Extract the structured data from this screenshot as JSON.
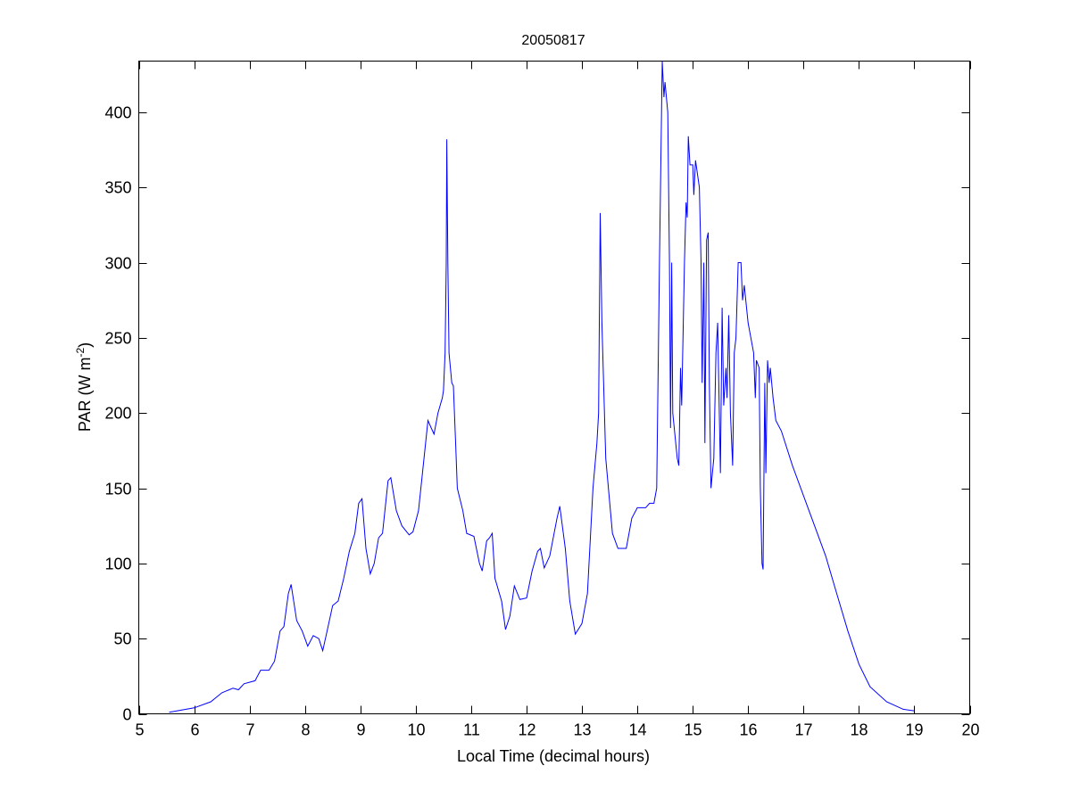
{
  "chart_data": {
    "type": "line",
    "title": "20050817",
    "xlabel": "Local Time (decimal hours)",
    "ylabel": "PAR (W m",
    "ylabel_sup": "-2",
    "ylabel_close": ")",
    "xlim": [
      5,
      20
    ],
    "ylim": [
      0,
      434
    ],
    "xticks": [
      5,
      6,
      7,
      8,
      9,
      10,
      11,
      12,
      13,
      14,
      15,
      16,
      17,
      18,
      19,
      20
    ],
    "yticks": [
      0,
      50,
      100,
      150,
      200,
      250,
      300,
      350,
      400
    ],
    "grid": false,
    "line_color": "#0000ff",
    "series": [
      {
        "x": [
          5.55,
          6.0,
          6.3,
          6.5,
          6.7,
          6.8,
          6.9,
          7.1,
          7.2,
          7.35,
          7.45,
          7.55,
          7.62,
          7.7,
          7.75,
          7.85,
          7.95,
          8.05,
          8.15,
          8.25,
          8.32,
          8.4,
          8.5,
          8.6,
          8.7,
          8.8,
          8.9,
          8.97,
          9.03,
          9.1,
          9.18,
          9.25,
          9.33,
          9.4,
          9.5,
          9.55,
          9.65,
          9.75,
          9.88,
          9.95,
          10.05,
          10.15,
          10.22,
          10.28,
          10.33,
          10.4,
          10.48,
          10.5,
          10.53,
          10.55,
          10.56,
          10.58,
          10.6,
          10.65,
          10.68,
          10.72,
          10.75,
          10.85,
          10.92,
          11.05,
          11.15,
          11.2,
          11.28,
          11.33,
          11.38,
          11.43,
          11.55,
          11.62,
          11.7,
          11.78,
          11.88,
          12.0,
          12.1,
          12.2,
          12.25,
          12.32,
          12.42,
          12.55,
          12.6,
          12.7,
          12.78,
          12.88,
          13.0,
          13.1,
          13.2,
          13.27,
          13.3,
          13.33,
          13.36,
          13.43,
          13.55,
          13.65,
          13.8,
          13.9,
          14.0,
          14.15,
          14.22,
          14.3,
          14.35,
          14.4,
          14.45,
          14.48,
          14.5,
          14.55,
          14.58,
          14.6,
          14.62,
          14.64,
          14.68,
          14.72,
          14.75,
          14.78,
          14.8,
          14.85,
          14.88,
          14.9,
          14.92,
          14.95,
          15.0,
          15.02,
          15.05,
          15.1,
          15.12,
          15.15,
          15.17,
          15.2,
          15.22,
          15.25,
          15.28,
          15.3,
          15.33,
          15.38,
          15.42,
          15.45,
          15.5,
          15.53,
          15.56,
          15.6,
          15.62,
          15.65,
          15.68,
          15.72,
          15.75,
          15.78,
          15.82,
          15.87,
          15.9,
          15.93,
          16.0,
          16.05,
          16.1,
          16.13,
          16.15,
          16.2,
          16.22,
          16.25,
          16.27,
          16.3,
          16.32,
          16.35,
          16.38,
          16.4,
          16.45,
          16.5,
          16.6,
          16.8,
          17.0,
          17.2,
          17.4,
          17.6,
          17.8,
          18.0,
          18.2,
          18.5,
          18.8,
          19.0
        ],
        "y": [
          1,
          4,
          8,
          14,
          17,
          16,
          20,
          22,
          29,
          29,
          35,
          55,
          58,
          80,
          86,
          62,
          55,
          45,
          52,
          50,
          42,
          55,
          72,
          75,
          90,
          108,
          120,
          140,
          143,
          110,
          93,
          100,
          117,
          120,
          155,
          157,
          135,
          125,
          119,
          121,
          135,
          170,
          195,
          190,
          186,
          200,
          210,
          215,
          240,
          300,
          382,
          300,
          240,
          220,
          218,
          180,
          150,
          135,
          120,
          118,
          100,
          95,
          115,
          117,
          120,
          90,
          75,
          56,
          65,
          85,
          76,
          77,
          95,
          108,
          110,
          97,
          105,
          130,
          138,
          110,
          75,
          53,
          60,
          80,
          150,
          180,
          200,
          333,
          260,
          170,
          120,
          110,
          110,
          130,
          137,
          137,
          140,
          140,
          150,
          300,
          434,
          410,
          420,
          400,
          300,
          190,
          300,
          200,
          185,
          170,
          165,
          230,
          205,
          300,
          340,
          330,
          384,
          365,
          365,
          345,
          368,
          355,
          350,
          300,
          220,
          300,
          180,
          315,
          320,
          220,
          150,
          170,
          240,
          260,
          160,
          270,
          205,
          230,
          210,
          265,
          200,
          165,
          240,
          250,
          300,
          300,
          275,
          285,
          260,
          250,
          240,
          210,
          235,
          230,
          150,
          100,
          96,
          220,
          160,
          235,
          220,
          230,
          210,
          195,
          188,
          165,
          145,
          125,
          105,
          80,
          55,
          33,
          18,
          8,
          3,
          2
        ]
      }
    ]
  }
}
